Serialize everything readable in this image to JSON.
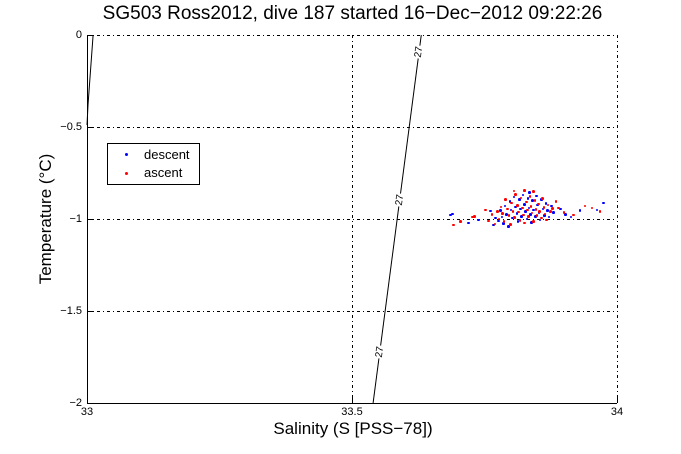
{
  "chart_data": {
    "type": "scatter",
    "title": "SG503 Ross2012, dive 187 started 16−Dec−2012 09:22:26",
    "xlabel": "Salinity (S [PSS−78])",
    "ylabel": "Temperature (°C)",
    "xlim": [
      33,
      34
    ],
    "ylim": [
      -2,
      0
    ],
    "xticks": [
      33,
      33.5,
      34
    ],
    "yticks": [
      0,
      -0.5,
      -1,
      -1.5,
      -2
    ],
    "xtick_labels": [
      "33",
      "33.5",
      "34"
    ],
    "ytick_labels": [
      "0",
      "−0.5",
      "−1",
      "−1.5",
      "−2"
    ],
    "grid": true,
    "legend_position": "upper-left-inside",
    "axis_color": "#000000",
    "background_color": "#ffffff",
    "series": [
      {
        "name": "descent",
        "color": "#0000ff",
        "marker": "point",
        "points": [
          [
            33.686,
            -0.978
          ],
          [
            33.69,
            -0.972
          ],
          [
            33.72,
            -1.022
          ],
          [
            33.739,
            -1.005
          ],
          [
            33.761,
            -0.957
          ],
          [
            33.767,
            -1.033
          ],
          [
            33.771,
            -0.995
          ],
          [
            33.776,
            -1.01
          ],
          [
            33.78,
            -0.955
          ],
          [
            33.783,
            -0.99
          ],
          [
            33.786,
            -1.025
          ],
          [
            33.789,
            -0.93
          ],
          [
            33.792,
            -0.975
          ],
          [
            33.795,
            -1.04
          ],
          [
            33.798,
            -0.905
          ],
          [
            33.8,
            -0.95
          ],
          [
            33.803,
            -0.995
          ],
          [
            33.806,
            -0.88
          ],
          [
            33.808,
            -0.935
          ],
          [
            33.811,
            -0.97
          ],
          [
            33.813,
            -1.015
          ],
          [
            33.816,
            -0.895
          ],
          [
            33.818,
            -0.945
          ],
          [
            33.82,
            -0.985
          ],
          [
            33.823,
            -0.87
          ],
          [
            33.825,
            -0.92
          ],
          [
            33.827,
            -0.96
          ],
          [
            33.83,
            -1.0
          ],
          [
            33.832,
            -0.89
          ],
          [
            33.834,
            -0.94
          ],
          [
            33.835,
            -0.855
          ],
          [
            33.837,
            -0.975
          ],
          [
            33.839,
            -1.02
          ],
          [
            33.841,
            -0.9
          ],
          [
            33.843,
            -0.95
          ],
          [
            33.846,
            -0.985
          ],
          [
            33.848,
            -0.875
          ],
          [
            33.85,
            -0.925
          ],
          [
            33.853,
            -0.965
          ],
          [
            33.855,
            -1.005
          ],
          [
            33.858,
            -0.895
          ],
          [
            33.86,
            -0.945
          ],
          [
            33.863,
            -0.98
          ],
          [
            33.866,
            -0.915
          ],
          [
            33.869,
            -0.955
          ],
          [
            33.872,
            -0.99
          ],
          [
            33.876,
            -0.93
          ],
          [
            33.88,
            -0.965
          ],
          [
            33.893,
            -0.945
          ],
          [
            33.903,
            -0.975
          ],
          [
            33.913,
            -0.989
          ],
          [
            33.93,
            -0.955
          ],
          [
            33.962,
            -0.951
          ],
          [
            33.975,
            -0.912
          ]
        ]
      },
      {
        "name": "ascent",
        "color": "#ff0000",
        "marker": "point",
        "points": [
          [
            33.691,
            -1.033
          ],
          [
            33.705,
            -1.015
          ],
          [
            33.727,
            -0.989
          ],
          [
            33.731,
            -0.987
          ],
          [
            33.752,
            -0.951
          ],
          [
            33.757,
            -1.01
          ],
          [
            33.764,
            -0.975
          ],
          [
            33.77,
            -1.028
          ],
          [
            33.774,
            -0.96
          ],
          [
            33.777,
            -1.0
          ],
          [
            33.781,
            -0.935
          ],
          [
            33.784,
            -0.97
          ],
          [
            33.787,
            -1.012
          ],
          [
            33.79,
            -0.895
          ],
          [
            33.793,
            -0.945
          ],
          [
            33.796,
            -0.982
          ],
          [
            33.799,
            -1.03
          ],
          [
            33.801,
            -0.912
          ],
          [
            33.804,
            -0.958
          ],
          [
            33.806,
            -0.848
          ],
          [
            33.807,
            -0.992
          ],
          [
            33.809,
            -0.868
          ],
          [
            33.812,
            -0.928
          ],
          [
            33.814,
            -0.962
          ],
          [
            33.817,
            -1.008
          ],
          [
            33.819,
            -0.885
          ],
          [
            33.822,
            -0.94
          ],
          [
            33.824,
            -0.978
          ],
          [
            33.825,
            -0.845
          ],
          [
            33.826,
            -1.022
          ],
          [
            33.829,
            -0.908
          ],
          [
            33.831,
            -0.952
          ],
          [
            33.833,
            -0.988
          ],
          [
            33.836,
            -0.878
          ],
          [
            33.838,
            -0.932
          ],
          [
            33.84,
            -0.968
          ],
          [
            33.842,
            -1.012
          ],
          [
            33.843,
            -0.852
          ],
          [
            33.845,
            -0.898
          ],
          [
            33.847,
            -0.948
          ],
          [
            33.849,
            -0.982
          ],
          [
            33.852,
            -0.918
          ],
          [
            33.854,
            -0.958
          ],
          [
            33.857,
            -0.995
          ],
          [
            33.859,
            -0.888
          ],
          [
            33.862,
            -0.938
          ],
          [
            33.864,
            -0.972
          ],
          [
            33.867,
            -1.005
          ],
          [
            33.87,
            -0.925
          ],
          [
            33.874,
            -0.96
          ],
          [
            33.878,
            -0.942
          ],
          [
            33.885,
            -0.905
          ],
          [
            33.89,
            -0.94
          ],
          [
            33.9,
            -0.965
          ],
          [
            33.918,
            -0.978
          ],
          [
            33.94,
            -0.93
          ],
          [
            33.953,
            -0.94
          ],
          [
            33.968,
            -0.958
          ]
        ]
      }
    ],
    "contours": [
      {
        "label": "27",
        "path": [
          [
            33.6307,
            0
          ],
          [
            33.5398,
            -2
          ]
        ],
        "label_at_T": [
          -0.092,
          -0.897,
          -1.723
        ]
      },
      {
        "label": "",
        "path": [
          [
            33.0114,
            -0.005
          ],
          [
            33.0019,
            -0.38
          ],
          [
            33.0,
            -0.489
          ]
        ],
        "label_at_T": []
      }
    ]
  }
}
